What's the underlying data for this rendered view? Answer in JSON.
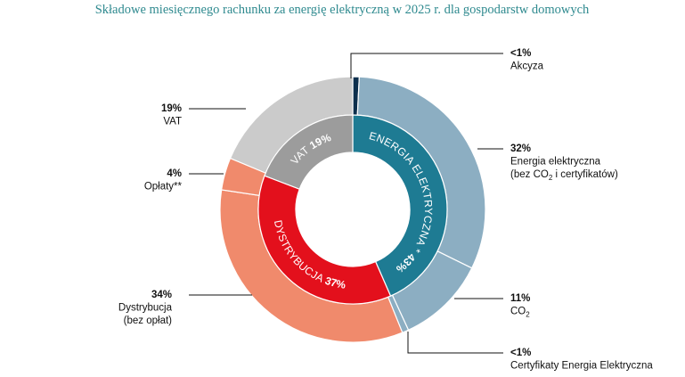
{
  "chart_data": {
    "type": "pie",
    "title": "Składowe miesięcznego rachunku za energię elektryczną w 2025 r. dla gospodarstw domowych",
    "inner_ring": [
      {
        "label": "ENERGIA ELEKTRYCZNA *",
        "value": 43,
        "value_label": "43%",
        "color": "#1e7b93"
      },
      {
        "label": "DYSTRYBUCJA",
        "value": 37,
        "value_label": "37%",
        "color": "#e3101c"
      },
      {
        "label": "VAT",
        "value": 19,
        "value_label": "19%",
        "color": "#9c9c9c"
      }
    ],
    "outer_ring": [
      {
        "name": "Akcyza",
        "value": 0.8,
        "value_label": "<1%",
        "lines": [
          "Akcyza"
        ],
        "color": "#0d2f4d"
      },
      {
        "name": "Energia elektryczna",
        "value": 32,
        "value_label": "32%",
        "lines": [
          "Energia elektryczna",
          "(bez CO",
          "2",
          " i certyfikatów)"
        ],
        "color": "#8caec2"
      },
      {
        "name": "CO2",
        "value": 11,
        "value_label": "11%",
        "lines": [
          "CO",
          "2"
        ],
        "color": "#8caec2"
      },
      {
        "name": "Certyfikaty Energia Elektryczna",
        "value": 0.8,
        "value_label": "<1%",
        "lines": [
          "Certyfikaty Energia Elektryczna"
        ],
        "color": "#8caec2"
      },
      {
        "name": "Dystrybucja (bez opłat)",
        "value": 34,
        "value_label": "34%",
        "lines": [
          "Dystrybucja",
          "(bez opłat)"
        ],
        "color": "#f08a6c"
      },
      {
        "name": "Opłaty**",
        "value": 4,
        "value_label": "4%",
        "lines": [
          "Opłaty**"
        ],
        "color": "#f08a6c"
      },
      {
        "name": "VAT",
        "value": 19,
        "value_label": "19%",
        "lines": [
          "VAT"
        ],
        "color": "#cbcbcb"
      }
    ]
  }
}
